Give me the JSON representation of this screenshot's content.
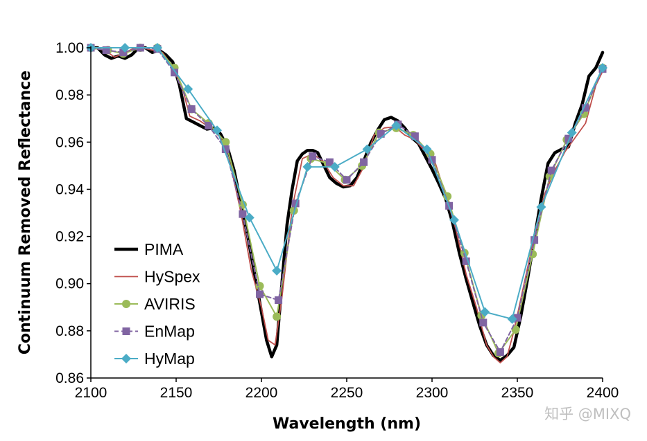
{
  "watermark": "知乎 @MIXQ",
  "colors": {
    "PIMA": "#000000",
    "HySpex": "#c0504d",
    "AVIRIS": "#9bbb59",
    "EnMap": "#8064a2",
    "HyMap": "#4bacc6"
  },
  "chart_data": {
    "type": "line",
    "title": "",
    "xlabel": "Wavelength (nm)",
    "ylabel": "Continuum Removed Reflectance",
    "xlim": [
      2100,
      2400
    ],
    "ylim": [
      0.86,
      1.0
    ],
    "xticks": [
      2100,
      2150,
      2200,
      2250,
      2300,
      2350,
      2400
    ],
    "yticks": [
      "0.86",
      "0.88",
      "0.90",
      "0.92",
      "0.94",
      "0.96",
      "0.98",
      "1.00"
    ],
    "legend_position": "bottom-left",
    "series": [
      {
        "name": "PIMA",
        "style": "thick-line",
        "x": [
          2100,
          2104,
          2108,
          2112,
          2116,
          2120,
          2124,
          2128,
          2132,
          2136,
          2140,
          2144,
          2148,
          2152,
          2156,
          2160,
          2164,
          2168,
          2172,
          2176,
          2180,
          2184,
          2188,
          2192,
          2196,
          2200,
          2203,
          2206,
          2209,
          2212,
          2215,
          2218,
          2221,
          2224,
          2227,
          2230,
          2233,
          2236,
          2240,
          2244,
          2248,
          2252,
          2256,
          2260,
          2264,
          2268,
          2272,
          2276,
          2280,
          2284,
          2288,
          2292,
          2296,
          2300,
          2304,
          2308,
          2312,
          2316,
          2320,
          2324,
          2328,
          2332,
          2336,
          2340,
          2344,
          2348,
          2352,
          2356,
          2360,
          2364,
          2368,
          2372,
          2376,
          2380,
          2384,
          2388,
          2392,
          2396,
          2400
        ],
        "y": [
          1.0,
          1.0,
          0.997,
          0.9955,
          0.9965,
          0.9955,
          0.997,
          1.0,
          1.0,
          0.998,
          0.999,
          0.997,
          0.994,
          0.984,
          0.97,
          0.9685,
          0.967,
          0.9655,
          0.966,
          0.9635,
          0.958,
          0.948,
          0.934,
          0.92,
          0.904,
          0.888,
          0.876,
          0.869,
          0.874,
          0.9,
          0.925,
          0.94,
          0.952,
          0.955,
          0.9565,
          0.9565,
          0.9555,
          0.951,
          0.945,
          0.9425,
          0.941,
          0.9415,
          0.945,
          0.952,
          0.9595,
          0.965,
          0.9695,
          0.9705,
          0.969,
          0.966,
          0.962,
          0.9595,
          0.954,
          0.9485,
          0.9425,
          0.936,
          0.926,
          0.913,
          0.902,
          0.892,
          0.882,
          0.874,
          0.8695,
          0.8675,
          0.8695,
          0.873,
          0.886,
          0.902,
          0.919,
          0.936,
          0.951,
          0.9555,
          0.957,
          0.958,
          0.968,
          0.976,
          0.988,
          0.9915,
          0.998
        ]
      },
      {
        "name": "HySpex",
        "style": "thin-line",
        "x": [
          2100,
          2108,
          2114,
          2120,
          2126,
          2130,
          2136,
          2142,
          2148,
          2154,
          2158,
          2164,
          2170,
          2176,
          2182,
          2188,
          2194,
          2200,
          2204,
          2208,
          2212,
          2218,
          2224,
          2230,
          2236,
          2242,
          2248,
          2254,
          2260,
          2266,
          2272,
          2278,
          2284,
          2290,
          2296,
          2302,
          2308,
          2314,
          2320,
          2326,
          2332,
          2336,
          2340,
          2344,
          2348,
          2354,
          2360,
          2366,
          2372,
          2378,
          2384,
          2390,
          2396,
          2400
        ],
        "y": [
          1.0,
          0.999,
          0.996,
          0.998,
          1.0,
          1.0,
          0.999,
          0.998,
          0.992,
          0.982,
          0.971,
          0.969,
          0.966,
          0.962,
          0.95,
          0.93,
          0.906,
          0.89,
          0.876,
          0.874,
          0.894,
          0.932,
          0.953,
          0.955,
          0.952,
          0.945,
          0.9415,
          0.9415,
          0.9495,
          0.963,
          0.966,
          0.9665,
          0.963,
          0.961,
          0.956,
          0.951,
          0.9375,
          0.923,
          0.904,
          0.89,
          0.874,
          0.869,
          0.8665,
          0.869,
          0.88,
          0.9,
          0.92,
          0.938,
          0.948,
          0.956,
          0.962,
          0.968,
          0.984,
          0.99
        ]
      },
      {
        "name": "AVIRIS",
        "style": "line-circle",
        "x": [
          2100,
          2110,
          2119,
          2129,
          2139,
          2149,
          2159,
          2169,
          2179,
          2189,
          2199,
          2209,
          2219,
          2229,
          2239,
          2249,
          2259,
          2269,
          2279,
          2289,
          2299,
          2309,
          2319,
          2329,
          2339,
          2349,
          2359,
          2369,
          2379,
          2389,
          2400
        ],
        "y": [
          1.0,
          0.999,
          0.9975,
          1.0,
          1.0,
          0.9915,
          0.974,
          0.968,
          0.96,
          0.9335,
          0.899,
          0.886,
          0.931,
          0.953,
          0.951,
          0.944,
          0.95,
          0.964,
          0.966,
          0.963,
          0.955,
          0.937,
          0.913,
          0.8865,
          0.8705,
          0.8805,
          0.9125,
          0.9455,
          0.961,
          0.972,
          0.9915
        ]
      },
      {
        "name": "EnMap",
        "style": "dash-square",
        "x": [
          2100,
          2109,
          2119,
          2129,
          2139,
          2149,
          2159,
          2169,
          2179,
          2189,
          2199,
          2210,
          2220,
          2230,
          2240,
          2250,
          2260,
          2270,
          2280,
          2290,
          2300,
          2310,
          2320,
          2330,
          2340,
          2350,
          2360,
          2370,
          2380,
          2390,
          2400
        ],
        "y": [
          1.0,
          0.999,
          0.998,
          1.0,
          0.9995,
          0.9895,
          0.974,
          0.967,
          0.957,
          0.9295,
          0.8955,
          0.893,
          0.934,
          0.954,
          0.9515,
          0.944,
          0.9515,
          0.9635,
          0.9675,
          0.9625,
          0.9525,
          0.933,
          0.9095,
          0.8835,
          0.871,
          0.8855,
          0.9185,
          0.948,
          0.9615,
          0.9745,
          0.991
        ]
      },
      {
        "name": "HyMap",
        "style": "line-diamond",
        "x": [
          2100,
          2120,
          2139,
          2157,
          2174,
          2193,
          2209,
          2227,
          2243,
          2262,
          2279,
          2297,
          2313,
          2331,
          2347,
          2364,
          2382,
          2400
        ],
        "y": [
          1.0,
          1.0,
          1.0,
          0.9825,
          0.965,
          0.928,
          0.9055,
          0.9495,
          0.9495,
          0.957,
          0.967,
          0.957,
          0.927,
          0.888,
          0.885,
          0.9325,
          0.964,
          0.9915
        ]
      }
    ]
  }
}
